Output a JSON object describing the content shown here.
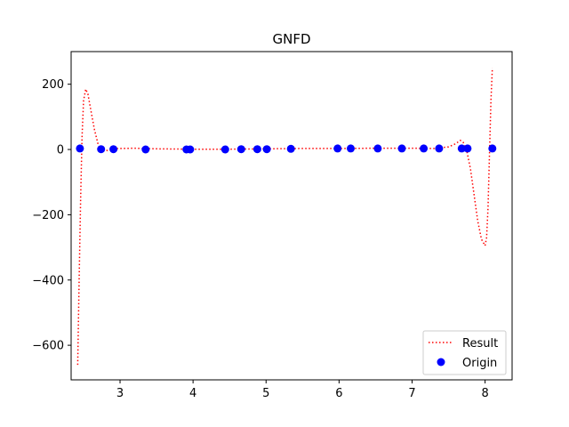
{
  "chart_data": {
    "type": "scatter",
    "title": "GNFD",
    "xlabel": "",
    "ylabel": "",
    "xlim": [
      2.33,
      8.37
    ],
    "ylim": [
      -706,
      300
    ],
    "xticks": [
      3,
      4,
      5,
      6,
      7,
      8
    ],
    "yticks": [
      -600,
      -400,
      -200,
      0,
      200
    ],
    "xtick_labels": [
      "3",
      "4",
      "5",
      "6",
      "7",
      "8"
    ],
    "ytick_labels": [
      "−600",
      "−400",
      "−200",
      "0",
      "200"
    ],
    "grid": false,
    "legend_position": "lower-right",
    "series": [
      {
        "name": "Result",
        "kind": "line",
        "style": "dotted",
        "color": "#ff0000",
        "x": [
          2.42,
          2.44,
          2.46,
          2.48,
          2.5,
          2.53,
          2.56,
          2.6,
          2.65,
          2.7,
          2.75,
          2.8,
          2.85,
          2.9,
          3.0,
          3.2,
          3.5,
          4.0,
          4.5,
          5.0,
          5.5,
          6.0,
          6.5,
          7.0,
          7.3,
          7.5,
          7.6,
          7.66,
          7.7,
          7.75,
          7.8,
          7.85,
          7.9,
          7.95,
          8.0,
          8.02,
          8.04,
          8.06,
          8.08,
          8.1
        ],
        "y": [
          -660,
          -400,
          -150,
          40,
          150,
          185,
          170,
          120,
          60,
          15,
          -5,
          -5,
          0,
          2,
          3,
          4,
          2,
          1,
          1,
          2,
          3,
          3,
          4,
          4,
          3,
          8,
          18,
          28,
          22,
          -5,
          -60,
          -140,
          -220,
          -275,
          -295,
          -270,
          -180,
          -20,
          150,
          250
        ]
      },
      {
        "name": "Origin",
        "kind": "scatter",
        "color": "#0000ff",
        "x": [
          2.45,
          2.74,
          2.91,
          3.35,
          3.91,
          3.96,
          4.44,
          4.66,
          4.88,
          5.01,
          5.34,
          5.98,
          6.16,
          6.53,
          6.86,
          7.16,
          7.37,
          7.68,
          7.76,
          8.1
        ],
        "y": [
          3,
          1,
          1,
          0,
          0,
          0,
          0,
          1,
          1,
          1,
          2,
          3,
          3,
          3,
          3,
          3,
          3,
          3,
          3,
          3
        ]
      }
    ]
  }
}
